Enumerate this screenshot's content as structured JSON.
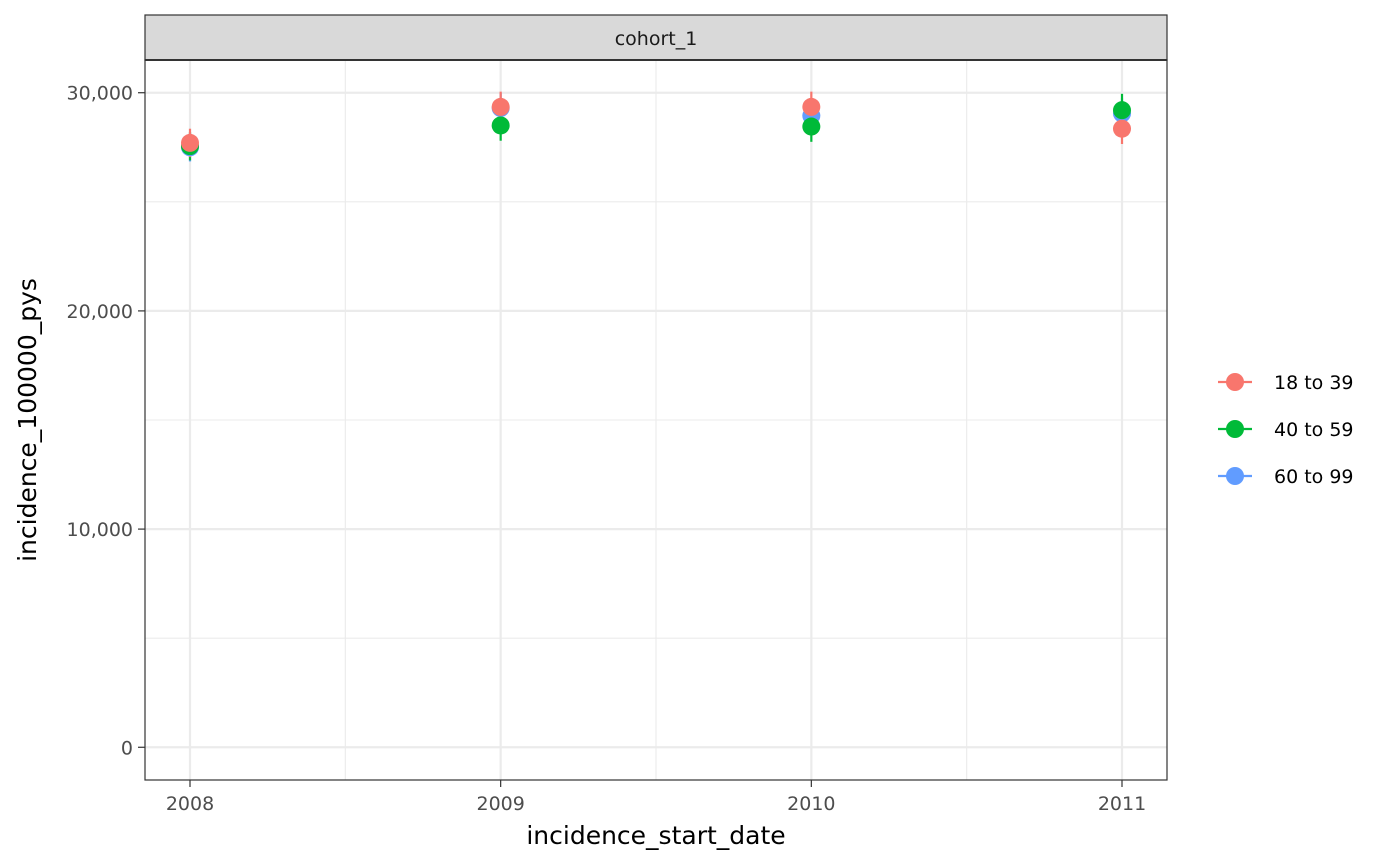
{
  "chart_data": {
    "type": "scatter",
    "facet_label": "cohort_1",
    "xlabel": "incidence_start_date",
    "ylabel": "incidence_100000_pys",
    "x_categories": [
      "2008",
      "2009",
      "2010",
      "2011"
    ],
    "y_ticks": [
      0,
      10000,
      20000,
      30000
    ],
    "y_tick_labels": [
      "0",
      "10,000",
      "20,000",
      "30,000"
    ],
    "ylim": [
      -1500,
      31500
    ],
    "grid": true,
    "legend_position": "right",
    "series": [
      {
        "name": "18 to 39",
        "color": "#F8766D",
        "points": [
          {
            "x": "2008",
            "y": 27700,
            "lower": 27050,
            "upper": 28350
          },
          {
            "x": "2009",
            "y": 29350,
            "lower": 28650,
            "upper": 30050
          },
          {
            "x": "2010",
            "y": 29350,
            "lower": 28650,
            "upper": 30050
          },
          {
            "x": "2011",
            "y": 28350,
            "lower": 27650,
            "upper": 29050
          }
        ]
      },
      {
        "name": "40 to 59",
        "color": "#00BA38",
        "points": [
          {
            "x": "2008",
            "y": 27550,
            "lower": 26900,
            "upper": 28200
          },
          {
            "x": "2009",
            "y": 28500,
            "lower": 27800,
            "upper": 29200
          },
          {
            "x": "2010",
            "y": 28450,
            "lower": 27750,
            "upper": 29150
          },
          {
            "x": "2011",
            "y": 29200,
            "lower": 28500,
            "upper": 29950
          }
        ]
      },
      {
        "name": "60 to 99",
        "color": "#619CFF",
        "points": [
          {
            "x": "2008",
            "y": 27500,
            "lower": 26850,
            "upper": 28150
          },
          {
            "x": "2009",
            "y": 29300,
            "lower": 28600,
            "upper": 30000
          },
          {
            "x": "2010",
            "y": 28950,
            "lower": 28250,
            "upper": 29650
          },
          {
            "x": "2011",
            "y": 29050,
            "lower": 28350,
            "upper": 29750
          }
        ]
      }
    ]
  }
}
